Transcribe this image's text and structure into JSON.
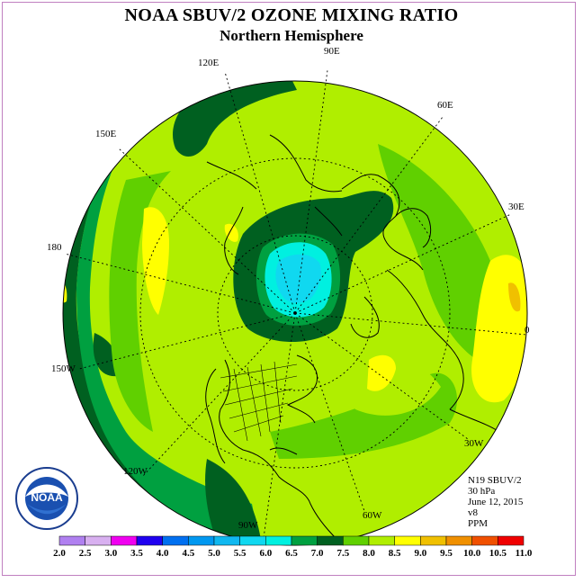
{
  "header": {
    "title": "NOAA SBUV/2 OZONE MIXING RATIO",
    "subtitle": "Northern Hemisphere"
  },
  "map": {
    "longitude_labels": [
      "90E",
      "60E",
      "30E",
      "0",
      "30W",
      "60W",
      "90W",
      "120W",
      "150W",
      "180",
      "150E",
      "120E"
    ]
  },
  "info": {
    "satellite": "N19 SBUV/2",
    "level": "30 hPa",
    "date": "June 12, 2015",
    "version": "v8",
    "units": "PPM"
  },
  "logo": {
    "text": "NOAA",
    "ring_text": "NATIONAL OCEANIC AND ATMOSPHERIC ADMINISTRATION · U.S. DEPARTMENT OF COMMERCE"
  },
  "colorbar": {
    "ticks": [
      "2.0",
      "2.5",
      "3.0",
      "3.5",
      "4.0",
      "4.5",
      "5.0",
      "5.5",
      "6.0",
      "6.5",
      "7.0",
      "7.5",
      "8.0",
      "8.5",
      "9.0",
      "9.5",
      "10.0",
      "10.5",
      "11.0"
    ],
    "colors": [
      "#b080f0",
      "#d8b0f0",
      "#f000f0",
      "#2000f0",
      "#0070f0",
      "#0098f0",
      "#10b8f0",
      "#10d8f0",
      "#00f0e0",
      "#00a040",
      "#006020",
      "#60d000",
      "#b0ee00",
      "#ffff00",
      "#f0c000",
      "#f09000",
      "#f05000",
      "#f00000",
      "#906040"
    ]
  }
}
